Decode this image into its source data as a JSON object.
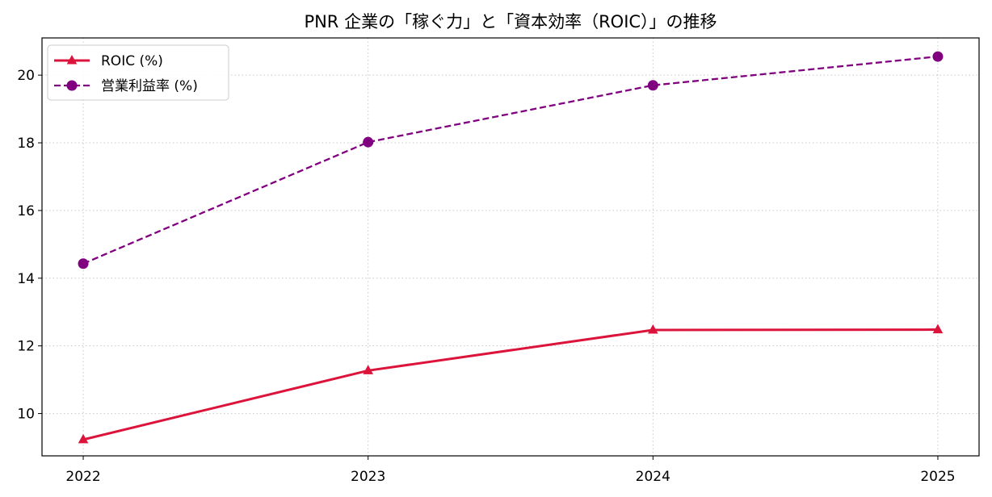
{
  "chart_data": {
    "type": "line",
    "title": "PNR 企業の「稼ぐ力」と「資本効率（ROIC）」の推移",
    "xlabel": "",
    "ylabel": "",
    "x": [
      "2022",
      "2023",
      "2024",
      "2025"
    ],
    "ylim": [
      8.75,
      21.1
    ],
    "yticks": [
      10,
      12,
      14,
      16,
      18,
      20
    ],
    "grid": true,
    "legend_position": "upper-left",
    "series": [
      {
        "name": "ROIC (%)",
        "values": [
          9.23,
          11.27,
          12.47,
          12.48
        ],
        "color": "#dc143c",
        "line_style": "solid",
        "marker": "triangle"
      },
      {
        "name": "営業利益率 (%)",
        "values": [
          14.43,
          18.02,
          19.7,
          20.55
        ],
        "color": "#800080",
        "line_style": "dashed",
        "marker": "circle"
      }
    ]
  }
}
